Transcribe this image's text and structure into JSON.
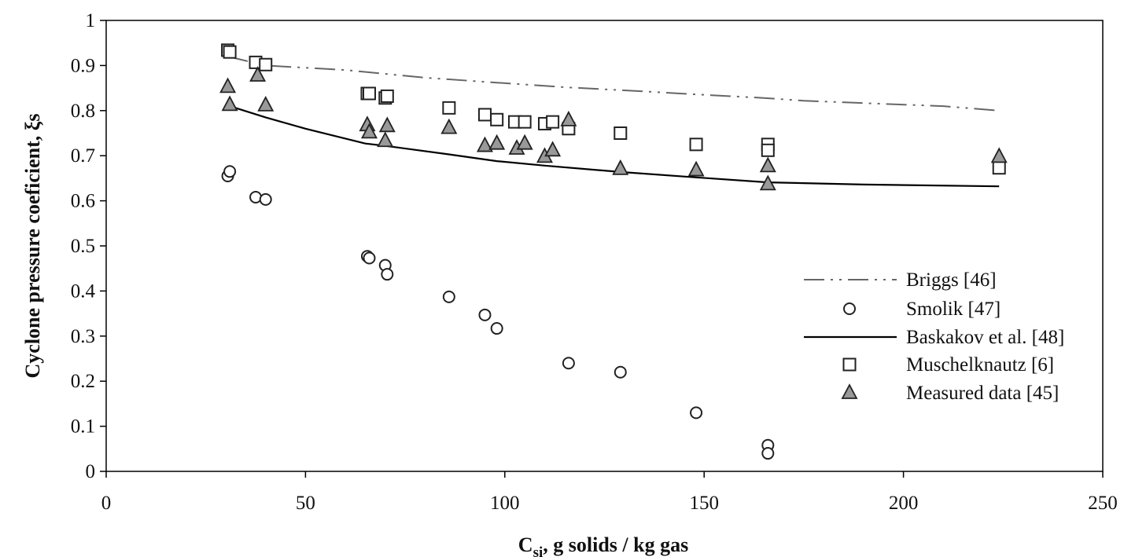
{
  "chart_data": {
    "type": "scatter",
    "title": "",
    "xlabel": "C",
    "xlabel_sub": "si",
    "xlabel_rest": ", g solids / kg gas",
    "ylabel": "Cyclone pressure coeficient, ξs",
    "xlim": [
      0,
      250
    ],
    "ylim": [
      0,
      1
    ],
    "x_ticks": [
      "0",
      "50",
      "100",
      "150",
      "200",
      "250"
    ],
    "y_ticks": [
      "0",
      "0.1",
      "0.2",
      "0.3",
      "0.4",
      "0.5",
      "0.6",
      "0.7",
      "0.8",
      "0.9",
      "1"
    ],
    "grid": false,
    "legend_position": "center-right",
    "series": [
      {
        "name": "Briggs [46]",
        "kind": "line",
        "style": "dash-dot-dot",
        "color": "#666666",
        "points": [
          [
            30.5,
            0.92
          ],
          [
            40,
            0.9
          ],
          [
            60,
            0.89
          ],
          [
            80,
            0.873
          ],
          [
            98,
            0.862
          ],
          [
            115,
            0.852
          ],
          [
            130,
            0.845
          ],
          [
            150,
            0.835
          ],
          [
            165,
            0.828
          ],
          [
            175,
            0.822
          ],
          [
            195,
            0.815
          ],
          [
            210,
            0.81
          ],
          [
            224,
            0.8
          ]
        ]
      },
      {
        "name": "Smolik [47]",
        "kind": "scatter",
        "marker": "circle",
        "color": "#222222",
        "points": [
          [
            30.5,
            0.655
          ],
          [
            31,
            0.665
          ],
          [
            37.5,
            0.608
          ],
          [
            40,
            0.603
          ],
          [
            65.5,
            0.477
          ],
          [
            66,
            0.473
          ],
          [
            70,
            0.457
          ],
          [
            70.5,
            0.437
          ],
          [
            86,
            0.387
          ],
          [
            95,
            0.347
          ],
          [
            98,
            0.317
          ],
          [
            116,
            0.24
          ],
          [
            129,
            0.22
          ],
          [
            148,
            0.13
          ],
          [
            166,
            0.058
          ],
          [
            166,
            0.04
          ]
        ]
      },
      {
        "name": "Baskakov et al. [48]",
        "kind": "line",
        "style": "solid",
        "color": "#000000",
        "points": [
          [
            31,
            0.81
          ],
          [
            40,
            0.785
          ],
          [
            50,
            0.76
          ],
          [
            65,
            0.727
          ],
          [
            70,
            0.722
          ],
          [
            86,
            0.703
          ],
          [
            98,
            0.688
          ],
          [
            110,
            0.678
          ],
          [
            129,
            0.664
          ],
          [
            148,
            0.652
          ],
          [
            166,
            0.641
          ],
          [
            190,
            0.636
          ],
          [
            224,
            0.632
          ]
        ]
      },
      {
        "name": "Muschelknautz [6]",
        "kind": "scatter",
        "marker": "square",
        "color": "#222222",
        "points": [
          [
            30.5,
            0.934
          ],
          [
            31,
            0.93
          ],
          [
            37.5,
            0.907
          ],
          [
            40,
            0.902
          ],
          [
            65.5,
            0.838
          ],
          [
            66,
            0.838
          ],
          [
            70,
            0.828
          ],
          [
            70.5,
            0.832
          ],
          [
            86,
            0.806
          ],
          [
            95,
            0.791
          ],
          [
            98,
            0.78
          ],
          [
            102.5,
            0.775
          ],
          [
            105,
            0.775
          ],
          [
            110,
            0.771
          ],
          [
            112,
            0.775
          ],
          [
            116,
            0.76
          ],
          [
            129,
            0.75
          ],
          [
            148,
            0.725
          ],
          [
            166,
            0.725
          ],
          [
            166,
            0.712
          ],
          [
            224,
            0.673
          ]
        ]
      },
      {
        "name": "Measured data [45]",
        "kind": "scatter",
        "marker": "triangle",
        "color": "#999999",
        "points": [
          [
            30.5,
            0.853
          ],
          [
            31,
            0.813
          ],
          [
            38,
            0.878
          ],
          [
            40,
            0.812
          ],
          [
            65.5,
            0.768
          ],
          [
            66,
            0.752
          ],
          [
            70,
            0.733
          ],
          [
            70.5,
            0.766
          ],
          [
            86,
            0.762
          ],
          [
            95,
            0.722
          ],
          [
            98,
            0.727
          ],
          [
            103,
            0.716
          ],
          [
            105,
            0.727
          ],
          [
            110,
            0.698
          ],
          [
            112,
            0.712
          ],
          [
            116,
            0.779
          ],
          [
            129,
            0.671
          ],
          [
            148,
            0.668
          ],
          [
            166,
            0.677
          ],
          [
            166,
            0.637
          ],
          [
            224,
            0.698
          ]
        ]
      }
    ]
  }
}
